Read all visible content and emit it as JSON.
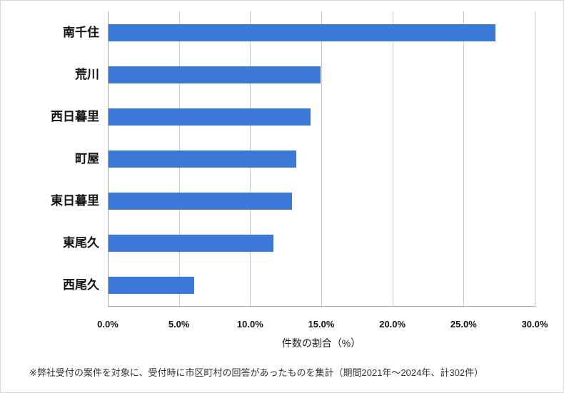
{
  "chart_data": {
    "type": "bar",
    "orientation": "horizontal",
    "categories": [
      "南千住",
      "荒川",
      "西日暮里",
      "町屋",
      "東日暮里",
      "東尾久",
      "西尾久"
    ],
    "values": [
      27.2,
      14.9,
      14.2,
      13.2,
      12.9,
      11.6,
      6.0
    ],
    "title": "",
    "xlabel": "件数の割合（%）",
    "ylabel": "",
    "xlim": [
      0,
      30
    ],
    "xticks": [
      0,
      5,
      10,
      15,
      20,
      25,
      30
    ],
    "xtick_labels": [
      "0.0%",
      "5.0%",
      "10.0%",
      "15.0%",
      "20.0%",
      "25.0%",
      "30.0%"
    ],
    "grid": true,
    "legend": false,
    "bar_color": "#3C78D8",
    "gridline_color": "#C9C9C9",
    "axis_color": "#A8A8A8"
  },
  "footnote": "※弊社受付の案件を対象に、受付時に市区町村の回答があったものを集計（期間2021年～2024年、計302件）"
}
